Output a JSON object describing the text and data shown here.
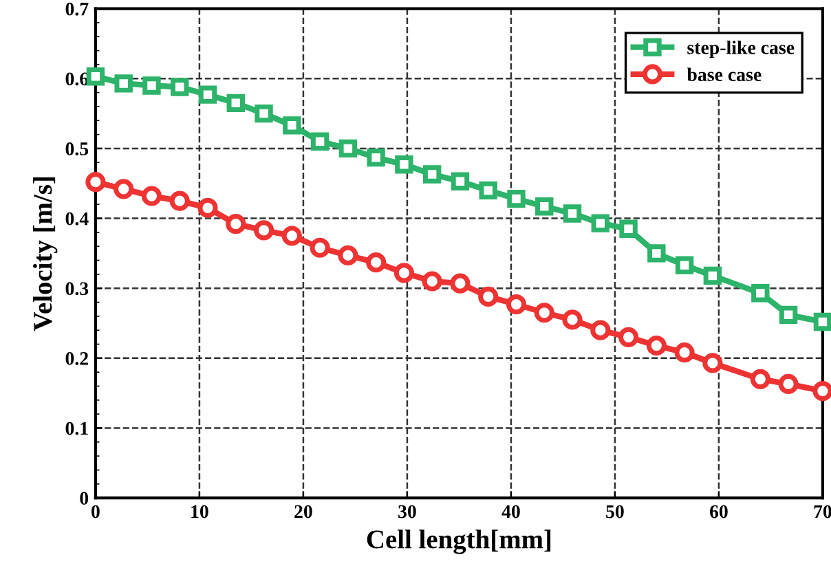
{
  "chart_data": {
    "type": "line",
    "xlabel": "Cell length[mm]",
    "ylabel": "Velocity [m/s]",
    "x": [
      0,
      2.7,
      5.4,
      8.1,
      10.8,
      13.5,
      16.2,
      18.9,
      21.6,
      24.3,
      27,
      29.7,
      32.4,
      35.1,
      37.8,
      40.5,
      43.2,
      45.9,
      48.6,
      51.3,
      54,
      56.7,
      59.4,
      64,
      66.7,
      70
    ],
    "series": [
      {
        "name": "step-like case",
        "color": "#2db36a",
        "marker": "square",
        "values": [
          0.603,
          0.593,
          0.59,
          0.588,
          0.577,
          0.565,
          0.55,
          0.533,
          0.51,
          0.5,
          0.487,
          0.477,
          0.463,
          0.453,
          0.44,
          0.428,
          0.417,
          0.407,
          0.393,
          0.385,
          0.35,
          0.333,
          0.318,
          0.293,
          0.262,
          0.252
        ]
      },
      {
        "name": "base case",
        "color": "#ee3333",
        "marker": "circle",
        "values": [
          0.452,
          0.442,
          0.432,
          0.425,
          0.415,
          0.392,
          0.383,
          0.375,
          0.358,
          0.347,
          0.337,
          0.322,
          0.31,
          0.307,
          0.288,
          0.277,
          0.265,
          0.255,
          0.24,
          0.23,
          0.218,
          0.208,
          0.193,
          0.17,
          0.163,
          0.153
        ]
      }
    ],
    "xlim": [
      0,
      70
    ],
    "xticks": [
      0,
      10,
      20,
      30,
      40,
      50,
      60,
      70
    ],
    "ylim": [
      0,
      0.7
    ],
    "yticks": [
      0,
      0.1,
      0.2,
      0.3,
      0.4,
      0.5,
      0.6,
      0.7
    ],
    "grid": true,
    "legend": "top right",
    "line_style": "solid"
  }
}
